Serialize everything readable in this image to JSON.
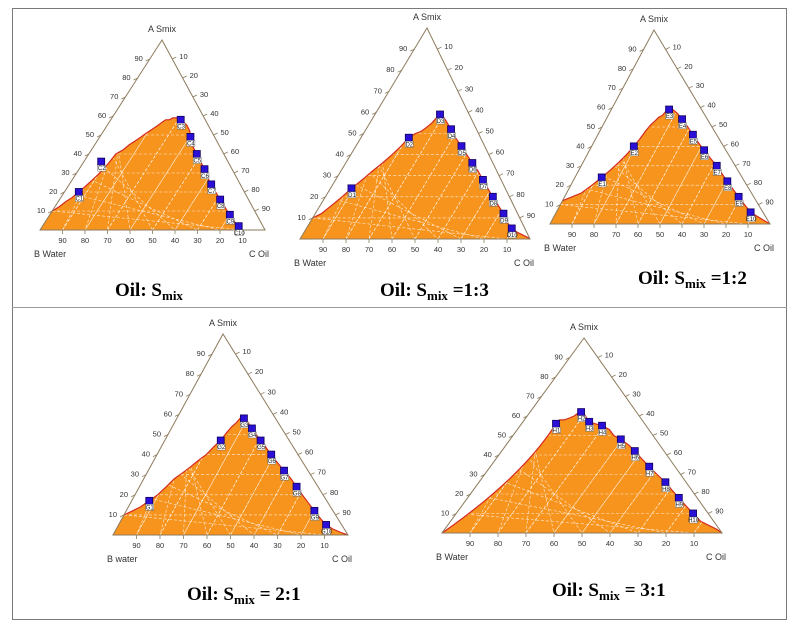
{
  "theme": {
    "region_fill": "#f7941d",
    "boundary": "#d42a1f",
    "marker_fill": "#2a0fd6",
    "marker_edge": "#100060",
    "axis": "#8c7a5c",
    "grid": "#ffffff"
  },
  "chart_data": [
    {
      "type": "ternary",
      "caption": {
        "prefix": "Oil: S",
        "sub": "mix",
        "suffix": ""
      },
      "vertex_labels": {
        "top": "A Smix",
        "left": "B Water",
        "right": "C Oil"
      },
      "ticks": [
        "10",
        "20",
        "30",
        "40",
        "50",
        "60",
        "70",
        "80",
        "90"
      ],
      "boundary": [
        [
          0,
          10
        ],
        [
          2,
          12
        ],
        [
          4,
          15
        ],
        [
          6,
          17
        ],
        [
          8,
          20
        ],
        [
          10,
          23
        ],
        [
          12,
          26
        ],
        [
          14,
          29
        ],
        [
          16,
          32
        ],
        [
          18,
          36
        ],
        [
          20,
          40
        ],
        [
          24,
          42
        ],
        [
          28,
          45
        ],
        [
          32,
          47
        ],
        [
          36,
          49
        ],
        [
          40,
          51
        ],
        [
          45,
          53
        ],
        [
          50,
          55
        ],
        [
          55,
          57
        ],
        [
          58,
          58
        ],
        [
          62,
          58
        ],
        [
          66,
          59
        ],
        [
          70,
          59
        ],
        [
          74,
          58
        ],
        [
          76,
          57
        ],
        [
          79,
          55
        ],
        [
          80,
          52
        ],
        [
          79,
          49
        ],
        [
          78,
          46
        ],
        [
          79,
          43
        ],
        [
          80,
          40
        ],
        [
          81,
          36
        ],
        [
          82,
          32
        ],
        [
          82,
          28
        ],
        [
          83,
          24
        ],
        [
          84,
          20
        ],
        [
          85,
          16
        ],
        [
          86,
          12
        ],
        [
          87,
          8
        ],
        [
          88,
          4
        ],
        [
          89,
          2
        ],
        [
          90,
          0
        ]
      ],
      "points": [
        {
          "label": "C1",
          "x": 8,
          "y": 20
        },
        {
          "label": "C2",
          "x": 12,
          "y": 36
        },
        {
          "label": "C3",
          "x": 74,
          "y": 58
        },
        {
          "label": "C4",
          "x": 79,
          "y": 49
        },
        {
          "label": "C5",
          "x": 80,
          "y": 40
        },
        {
          "label": "C6",
          "x": 82,
          "y": 32
        },
        {
          "label": "C7",
          "x": 83,
          "y": 24
        },
        {
          "label": "C8",
          "x": 85,
          "y": 16
        },
        {
          "label": "C9",
          "x": 87,
          "y": 8
        },
        {
          "label": "C10",
          "x": 89,
          "y": 2
        }
      ]
    },
    {
      "type": "ternary",
      "caption": {
        "prefix": "Oil: S",
        "sub": "mix",
        "suffix": " =1:3"
      },
      "vertex_labels": {
        "top": "A Smix",
        "left": "B Water",
        "right": "C Oil"
      },
      "ticks": [
        "10",
        "20",
        "30",
        "40",
        "50",
        "60",
        "70",
        "80",
        "90"
      ],
      "boundary": [
        [
          0,
          10
        ],
        [
          3,
          12
        ],
        [
          6,
          16
        ],
        [
          9,
          20
        ],
        [
          12,
          24
        ],
        [
          16,
          28
        ],
        [
          20,
          32
        ],
        [
          25,
          36
        ],
        [
          30,
          40
        ],
        [
          35,
          44
        ],
        [
          40,
          48
        ],
        [
          45,
          50
        ],
        [
          50,
          51
        ],
        [
          55,
          53
        ],
        [
          60,
          55
        ],
        [
          64,
          57
        ],
        [
          68,
          59
        ],
        [
          72,
          58
        ],
        [
          74,
          56
        ],
        [
          77,
          52
        ],
        [
          79,
          48
        ],
        [
          82,
          44
        ],
        [
          84,
          40
        ],
        [
          86,
          36
        ],
        [
          88,
          32
        ],
        [
          89,
          28
        ],
        [
          90,
          24
        ],
        [
          91,
          20
        ],
        [
          92,
          16
        ],
        [
          93,
          12
        ],
        [
          93,
          8
        ],
        [
          94,
          5
        ],
        [
          96,
          3
        ],
        [
          99,
          1
        ],
        [
          100,
          0
        ]
      ],
      "points": [
        {
          "label": "D1",
          "x": 12,
          "y": 24
        },
        {
          "label": "D2",
          "x": 40,
          "y": 48
        },
        {
          "label": "D3",
          "x": 69,
          "y": 59
        },
        {
          "label": "D4",
          "x": 77,
          "y": 52
        },
        {
          "label": "D5",
          "x": 82,
          "y": 44
        },
        {
          "label": "D6",
          "x": 86,
          "y": 36
        },
        {
          "label": "D7",
          "x": 89,
          "y": 28
        },
        {
          "label": "D8",
          "x": 91,
          "y": 20
        },
        {
          "label": "D9",
          "x": 93,
          "y": 12
        },
        {
          "label": "D10",
          "x": 94,
          "y": 5
        }
      ]
    },
    {
      "type": "ternary",
      "caption": {
        "prefix": "Oil: S",
        "sub": "mix",
        "suffix": " =1:2"
      },
      "vertex_labels": {
        "top": "A Smix",
        "left": "B Water",
        "right": "C Oil"
      },
      "ticks": [
        "10",
        "20",
        "30",
        "40",
        "50",
        "60",
        "70",
        "80",
        "90"
      ],
      "boundary": [
        [
          0,
          12
        ],
        [
          4,
          14
        ],
        [
          8,
          16
        ],
        [
          12,
          20
        ],
        [
          16,
          24
        ],
        [
          20,
          28
        ],
        [
          24,
          32
        ],
        [
          28,
          36
        ],
        [
          32,
          40
        ],
        [
          36,
          44
        ],
        [
          40,
          48
        ],
        [
          44,
          51
        ],
        [
          48,
          53
        ],
        [
          52,
          55
        ],
        [
          56,
          56
        ],
        [
          60,
          58
        ],
        [
          64,
          59
        ],
        [
          68,
          59
        ],
        [
          72,
          57
        ],
        [
          75,
          54
        ],
        [
          78,
          50
        ],
        [
          80,
          46
        ],
        [
          82,
          42
        ],
        [
          84,
          38
        ],
        [
          86,
          34
        ],
        [
          88,
          30
        ],
        [
          89,
          26
        ],
        [
          90,
          22
        ],
        [
          91,
          18
        ],
        [
          92,
          14
        ],
        [
          93,
          10
        ],
        [
          94,
          6
        ],
        [
          96,
          4
        ],
        [
          98,
          2
        ],
        [
          100,
          0
        ]
      ],
      "points": [
        {
          "label": "E1",
          "x": 16,
          "y": 24
        },
        {
          "label": "E2",
          "x": 32,
          "y": 40
        },
        {
          "label": "E3",
          "x": 64,
          "y": 59
        },
        {
          "label": "E4",
          "x": 75,
          "y": 54
        },
        {
          "label": "E5",
          "x": 80,
          "y": 46
        },
        {
          "label": "E6",
          "x": 84,
          "y": 38
        },
        {
          "label": "E7",
          "x": 88,
          "y": 30
        },
        {
          "label": "E8",
          "x": 90,
          "y": 22
        },
        {
          "label": "E9",
          "x": 92,
          "y": 14
        },
        {
          "label": "E10",
          "x": 94,
          "y": 6
        }
      ]
    },
    {
      "type": "ternary",
      "caption": {
        "prefix": "Oil: S",
        "sub": "mix",
        "suffix": " = 2:1"
      },
      "vertex_labels": {
        "top": "A Smix",
        "left": "B water",
        "right": "C Oil"
      },
      "ticks": [
        "10",
        "20",
        "30",
        "40",
        "50",
        "60",
        "70",
        "80",
        "90"
      ],
      "boundary": [
        [
          0,
          10
        ],
        [
          3,
          12
        ],
        [
          6,
          14
        ],
        [
          9,
          17
        ],
        [
          12,
          20
        ],
        [
          15,
          24
        ],
        [
          18,
          28
        ],
        [
          22,
          31
        ],
        [
          26,
          34
        ],
        [
          30,
          37
        ],
        [
          35,
          40
        ],
        [
          40,
          44
        ],
        [
          45,
          47
        ],
        [
          50,
          51
        ],
        [
          55,
          54
        ],
        [
          60,
          56
        ],
        [
          64,
          58
        ],
        [
          68,
          58
        ],
        [
          71,
          56
        ],
        [
          73,
          53
        ],
        [
          75,
          50
        ],
        [
          77,
          47
        ],
        [
          79,
          44
        ],
        [
          81,
          40
        ],
        [
          83,
          36
        ],
        [
          85,
          32
        ],
        [
          87,
          28
        ],
        [
          88,
          24
        ],
        [
          89,
          20
        ],
        [
          90,
          16
        ],
        [
          91,
          12
        ],
        [
          92,
          8
        ],
        [
          93,
          5
        ],
        [
          95,
          3
        ],
        [
          98,
          1
        ],
        [
          100,
          0
        ]
      ],
      "points": [
        {
          "label": "G1",
          "x": 9,
          "y": 17
        },
        {
          "label": "G2",
          "x": 45,
          "y": 47
        },
        {
          "label": "G3",
          "x": 68,
          "y": 58
        },
        {
          "label": "G4",
          "x": 73,
          "y": 53
        },
        {
          "label": "G5",
          "x": 77,
          "y": 47
        },
        {
          "label": "G6",
          "x": 81,
          "y": 40
        },
        {
          "label": "G7",
          "x": 85,
          "y": 32
        },
        {
          "label": "G8",
          "x": 88,
          "y": 24
        },
        {
          "label": "G9",
          "x": 91,
          "y": 12
        },
        {
          "label": "G10",
          "x": 93,
          "y": 5
        }
      ]
    },
    {
      "type": "ternary",
      "caption": {
        "prefix": "Oil: S",
        "sub": "mix",
        "suffix": " = 3:1"
      },
      "vertex_labels": {
        "top": "A Smix",
        "left": "B Water",
        "right": "C Oil"
      },
      "ticks": [
        "10",
        "20",
        "30",
        "40",
        "50",
        "60",
        "70",
        "80",
        "90"
      ],
      "boundary": [
        [
          0,
          0
        ],
        [
          2,
          4
        ],
        [
          4,
          8
        ],
        [
          6,
          12
        ],
        [
          8,
          16
        ],
        [
          10,
          20
        ],
        [
          12,
          24
        ],
        [
          14,
          28
        ],
        [
          16,
          32
        ],
        [
          18,
          36
        ],
        [
          20,
          40
        ],
        [
          22,
          44
        ],
        [
          24,
          48
        ],
        [
          26,
          52
        ],
        [
          28,
          56
        ],
        [
          30,
          58
        ],
        [
          34,
          58
        ],
        [
          38,
          59
        ],
        [
          42,
          60
        ],
        [
          44,
          61
        ],
        [
          48,
          62
        ],
        [
          50,
          62
        ],
        [
          52,
          60
        ],
        [
          55,
          57
        ],
        [
          60,
          56
        ],
        [
          65,
          55
        ],
        [
          70,
          53
        ],
        [
          72,
          50
        ],
        [
          76,
          48
        ],
        [
          80,
          45
        ],
        [
          82,
          42
        ],
        [
          84,
          38
        ],
        [
          86,
          34
        ],
        [
          88,
          30
        ],
        [
          90,
          26
        ],
        [
          91,
          22
        ],
        [
          92,
          18
        ],
        [
          93,
          14
        ],
        [
          94,
          10
        ],
        [
          95,
          6
        ],
        [
          97,
          4
        ],
        [
          99,
          2
        ],
        [
          100,
          0
        ]
      ],
      "points": [
        {
          "label": "H1",
          "x": 28,
          "y": 56
        },
        {
          "label": "H2",
          "x": 48,
          "y": 62
        },
        {
          "label": "H3",
          "x": 55,
          "y": 57
        },
        {
          "label": "H4",
          "x": 65,
          "y": 55
        },
        {
          "label": "H5",
          "x": 76,
          "y": 48
        },
        {
          "label": "H6",
          "x": 82,
          "y": 42
        },
        {
          "label": "H7",
          "x": 86,
          "y": 34
        },
        {
          "label": "H8",
          "x": 90,
          "y": 26
        },
        {
          "label": "H9",
          "x": 92,
          "y": 18
        },
        {
          "label": "H10",
          "x": 94,
          "y": 10
        }
      ]
    }
  ]
}
